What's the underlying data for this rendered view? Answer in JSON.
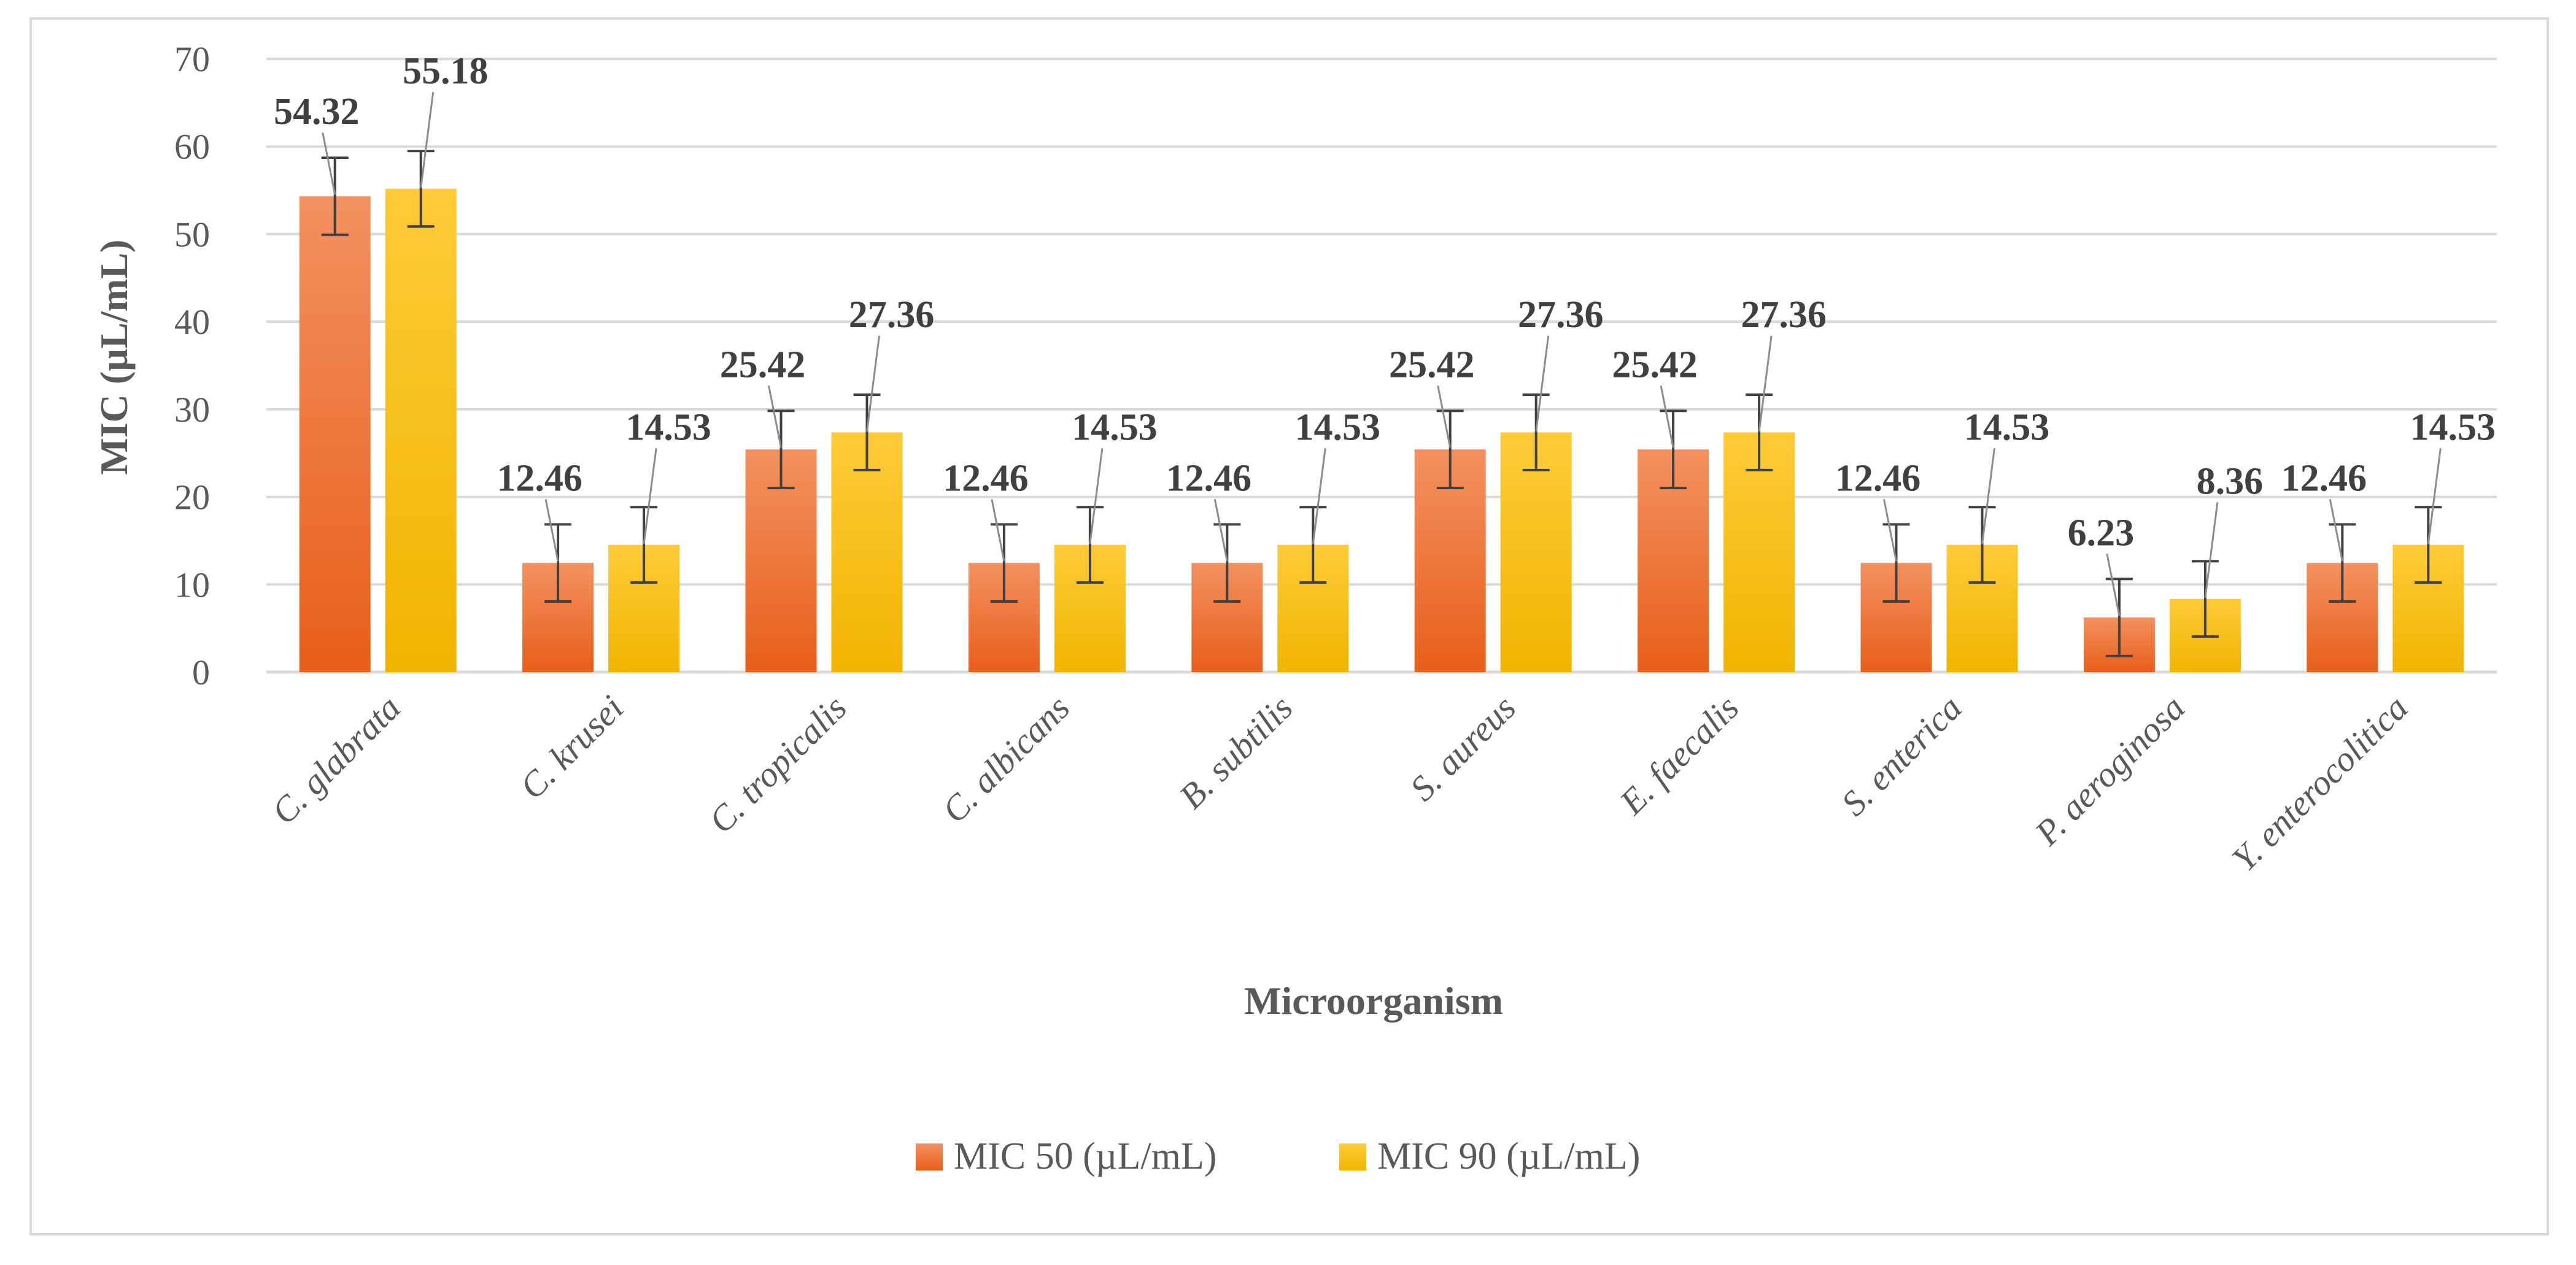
{
  "chart_data": {
    "type": "bar",
    "categories": [
      "C. glabrata",
      "C. krusei",
      "C. tropicalis",
      "C. albicans",
      "B. subtilis",
      "S. aureus",
      "E. faecalis",
      "S. enterica",
      "P. aeroginosa",
      "Y. enterocolitica"
    ],
    "series": [
      {
        "name": "MIC 50 (µL/mL)",
        "values": [
          54.32,
          12.46,
          25.42,
          12.46,
          12.46,
          25.42,
          25.42,
          12.46,
          6.23,
          12.46
        ],
        "labels": [
          "54.32",
          "12.46",
          "25.42",
          "12.46",
          "12.46",
          "25.42",
          "25.42",
          "12.46",
          "6.23",
          "12.46"
        ],
        "error": [
          4.4,
          4.4,
          4.4,
          4.4,
          4.4,
          4.4,
          4.4,
          4.4,
          4.4,
          4.4
        ],
        "color_top": "#f39160",
        "color_bottom": "#e85e1a"
      },
      {
        "name": "MIC 90 (µL/mL)",
        "values": [
          55.18,
          14.53,
          27.36,
          14.53,
          14.53,
          27.36,
          27.36,
          14.53,
          8.36,
          14.53
        ],
        "labels": [
          "55.18",
          "14.53",
          "27.36",
          "14.53",
          "14.53",
          "27.36",
          "27.36",
          "14.53",
          "8.36",
          "14.53"
        ],
        "error": [
          4.3,
          4.3,
          4.3,
          4.3,
          4.3,
          4.3,
          4.3,
          4.3,
          4.3,
          4.3
        ],
        "color_top": "#ffcb38",
        "color_bottom": "#f0b400"
      }
    ],
    "title": "",
    "xlabel": "Microorganism",
    "ylabel": "MIC (µL/mL)",
    "ylim": [
      0,
      70
    ],
    "yticks": [
      0,
      10,
      20,
      30,
      40,
      50,
      60,
      70
    ],
    "grid": true,
    "legend": "bottom"
  }
}
